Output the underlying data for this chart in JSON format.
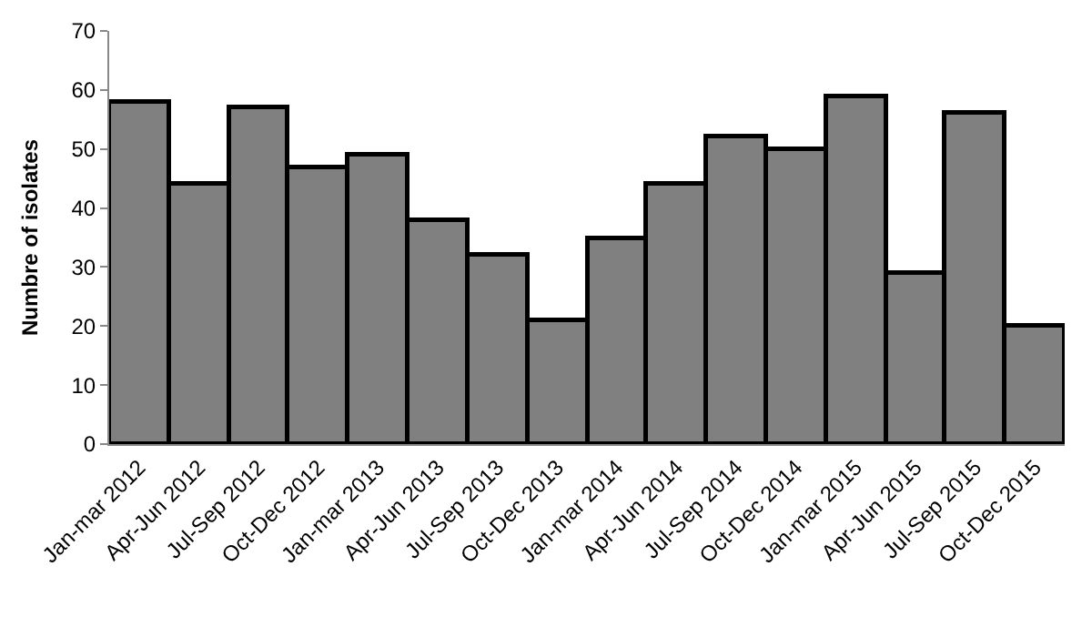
{
  "chart_data": {
    "type": "bar",
    "ylabel": "Numbre of isolates",
    "categories": [
      "Jan-mar 2012",
      "Apr-Jun 2012",
      "Jul-Sep 2012",
      "Oct-Dec 2012",
      "Jan-mar 2013",
      "Apr-Jun 2013",
      "Jul-Sep 2013",
      "Oct-Dec 2013",
      "Jan-mar 2014",
      "Apr-Jun 2014",
      "Jul-Sep 2014",
      "Oct-Dec 2014",
      "Jan-mar 2015",
      "Apr-Jun 2015",
      "Jul-Sep 2015",
      "Oct-Dec 2015"
    ],
    "values": [
      58,
      44,
      57,
      47,
      49,
      38,
      32,
      21,
      35,
      44,
      52,
      50,
      59,
      29,
      56,
      20
    ],
    "color": "#808080",
    "ylim": [
      0,
      70
    ],
    "yticks": [
      0,
      10,
      20,
      30,
      40,
      50,
      60,
      70
    ]
  }
}
